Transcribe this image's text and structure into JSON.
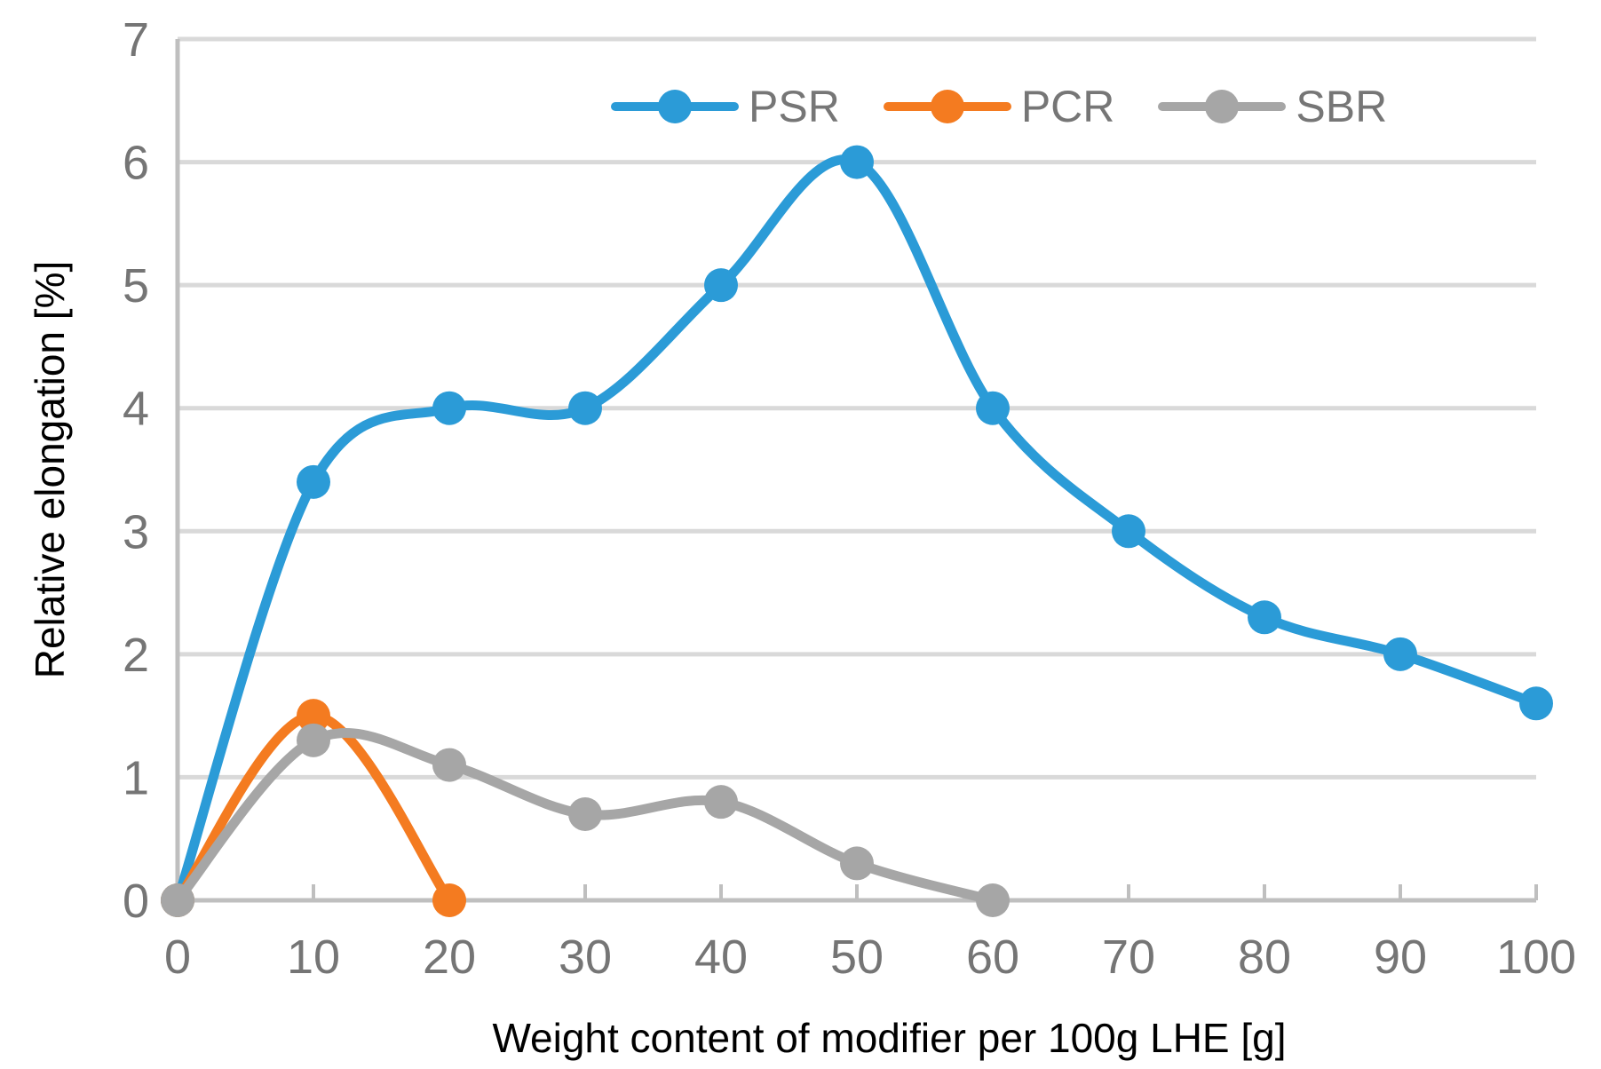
{
  "page": {
    "background": "#FFFFFF"
  },
  "legend": {
    "items": [
      {
        "label": "PSR",
        "color": "#2B9BD7"
      },
      {
        "label": "PCR",
        "color": "#F47B20"
      },
      {
        "label": "SBR",
        "color": "#A6A6A6"
      }
    ]
  },
  "chart_data": {
    "type": "line",
    "title": "",
    "xlabel": "Weight content of modifier per 100g LHE [g]",
    "ylabel": "Relative elongation [%]",
    "xlim": [
      0,
      100
    ],
    "ylim": [
      0,
      7
    ],
    "x_ticks": [
      0,
      10,
      20,
      30,
      40,
      50,
      60,
      70,
      80,
      90,
      100
    ],
    "y_ticks": [
      0,
      1,
      2,
      3,
      4,
      5,
      6,
      7
    ],
    "grid": "horizontal-only",
    "legend_position": "top-center",
    "smooth_lines": true,
    "series": [
      {
        "name": "PSR",
        "color": "#2B9BD7",
        "x": [
          0,
          10,
          20,
          30,
          40,
          50,
          60,
          70,
          80,
          90,
          100
        ],
        "values": [
          0,
          3.4,
          4.0,
          4.0,
          5.0,
          6.0,
          4.0,
          3.0,
          2.3,
          2.0,
          1.6
        ]
      },
      {
        "name": "PCR",
        "color": "#F47B20",
        "x": [
          0,
          10,
          20
        ],
        "values": [
          0,
          1.5,
          0
        ]
      },
      {
        "name": "SBR",
        "color": "#A6A6A6",
        "x": [
          0,
          10,
          20,
          30,
          40,
          50,
          60
        ],
        "values": [
          0,
          1.3,
          1.1,
          0.7,
          0.8,
          0.3,
          0
        ]
      }
    ],
    "style": {
      "gridline_color": "#D9D9D9",
      "axis_color": "#BFBFBF",
      "tick_label_color": "#757575",
      "legend_text_color": "#767676",
      "axis_title_color": "#000000",
      "line_width": 11,
      "marker_radius": 19
    }
  }
}
